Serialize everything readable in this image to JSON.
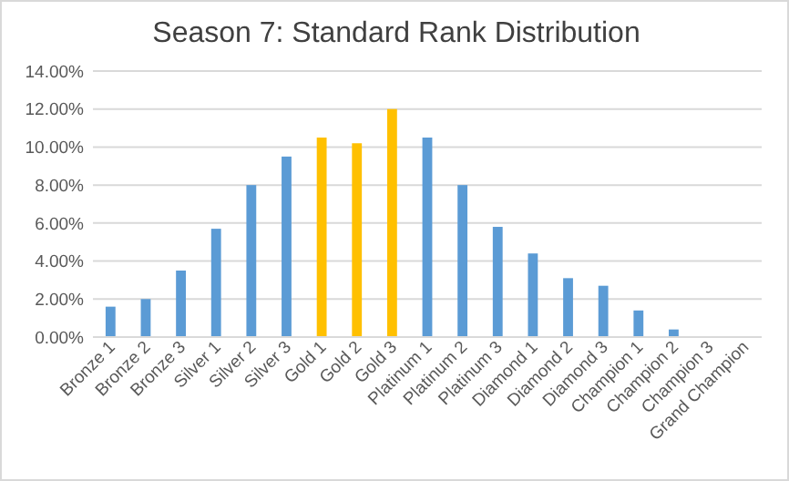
{
  "chart_data": {
    "type": "bar",
    "title": "Season 7: Standard Rank Distribution",
    "categories": [
      "Bronze 1",
      "Bronze 2",
      "Bronze 3",
      "Silver 1",
      "Silver 2",
      "Silver 3",
      "Gold 1",
      "Gold 2",
      "Gold 3",
      "Platinum 1",
      "Platinum 2",
      "Platinum 3",
      "Diamond 1",
      "Diamond 2",
      "Diamond 3",
      "Champion 1",
      "Champion 2",
      "Champion 3",
      "Grand Champion"
    ],
    "values": [
      1.6,
      2.0,
      3.5,
      5.7,
      8.0,
      9.5,
      10.5,
      10.2,
      12.0,
      10.5,
      8.0,
      5.8,
      4.4,
      3.1,
      2.7,
      1.4,
      0.4,
      null,
      null
    ],
    "colors": [
      "#5b9bd5",
      "#5b9bd5",
      "#5b9bd5",
      "#5b9bd5",
      "#5b9bd5",
      "#5b9bd5",
      "#ffc000",
      "#ffc000",
      "#ffc000",
      "#5b9bd5",
      "#5b9bd5",
      "#5b9bd5",
      "#5b9bd5",
      "#5b9bd5",
      "#5b9bd5",
      "#5b9bd5",
      "#5b9bd5",
      null,
      null
    ],
    "ylim": [
      0,
      14
    ],
    "yticks": [
      {
        "value": 0,
        "label": "0.00%"
      },
      {
        "value": 2,
        "label": "2.00%"
      },
      {
        "value": 4,
        "label": "4.00%"
      },
      {
        "value": 6,
        "label": "6.00%"
      },
      {
        "value": 8,
        "label": "8.00%"
      },
      {
        "value": 10,
        "label": "10.00%"
      },
      {
        "value": 12,
        "label": "12.00%"
      },
      {
        "value": 14,
        "label": "14.00%"
      }
    ],
    "grid": "y"
  }
}
